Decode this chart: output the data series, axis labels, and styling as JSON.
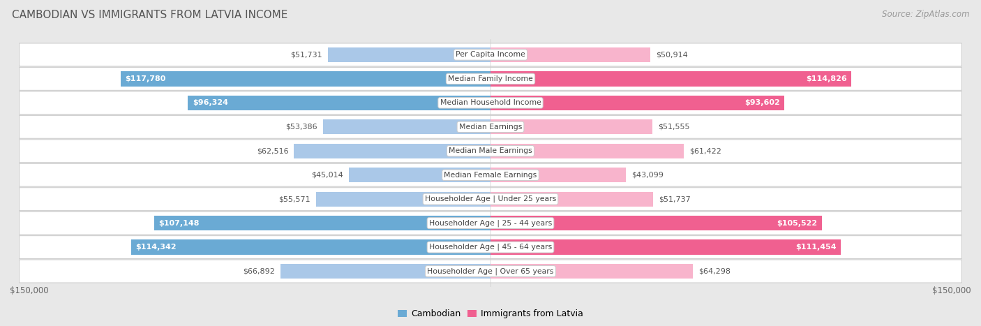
{
  "title": "CAMBODIAN VS IMMIGRANTS FROM LATVIA INCOME",
  "source": "Source: ZipAtlas.com",
  "categories": [
    "Per Capita Income",
    "Median Family Income",
    "Median Household Income",
    "Median Earnings",
    "Median Male Earnings",
    "Median Female Earnings",
    "Householder Age | Under 25 years",
    "Householder Age | 25 - 44 years",
    "Householder Age | 45 - 64 years",
    "Householder Age | Over 65 years"
  ],
  "cambodian_values": [
    51731,
    117780,
    96324,
    53386,
    62516,
    45014,
    55571,
    107148,
    114342,
    66892
  ],
  "latvia_values": [
    50914,
    114826,
    93602,
    51555,
    61422,
    43099,
    51737,
    105522,
    111454,
    64298
  ],
  "cambodian_labels": [
    "$51,731",
    "$117,780",
    "$96,324",
    "$53,386",
    "$62,516",
    "$45,014",
    "$55,571",
    "$107,148",
    "$114,342",
    "$66,892"
  ],
  "latvia_labels": [
    "$50,914",
    "$114,826",
    "$93,602",
    "$51,555",
    "$61,422",
    "$43,099",
    "$51,737",
    "$105,522",
    "$111,454",
    "$64,298"
  ],
  "cambodian_color_light": "#aac8e8",
  "cambodian_color_dark": "#6aaad4",
  "latvia_color_light": "#f8b4cc",
  "latvia_color_dark": "#f06090",
  "threshold": 90000,
  "max_value": 150000,
  "x_label_left": "$150,000",
  "x_label_right": "$150,000",
  "legend_cambodian": "Cambodian",
  "legend_latvia": "Immigrants from Latvia",
  "bg_color": "#e8e8e8",
  "row_bg_color": "#ffffff",
  "title_color": "#555555",
  "source_color": "#999999",
  "label_color_dark": "#555555",
  "label_color_white": "#ffffff"
}
